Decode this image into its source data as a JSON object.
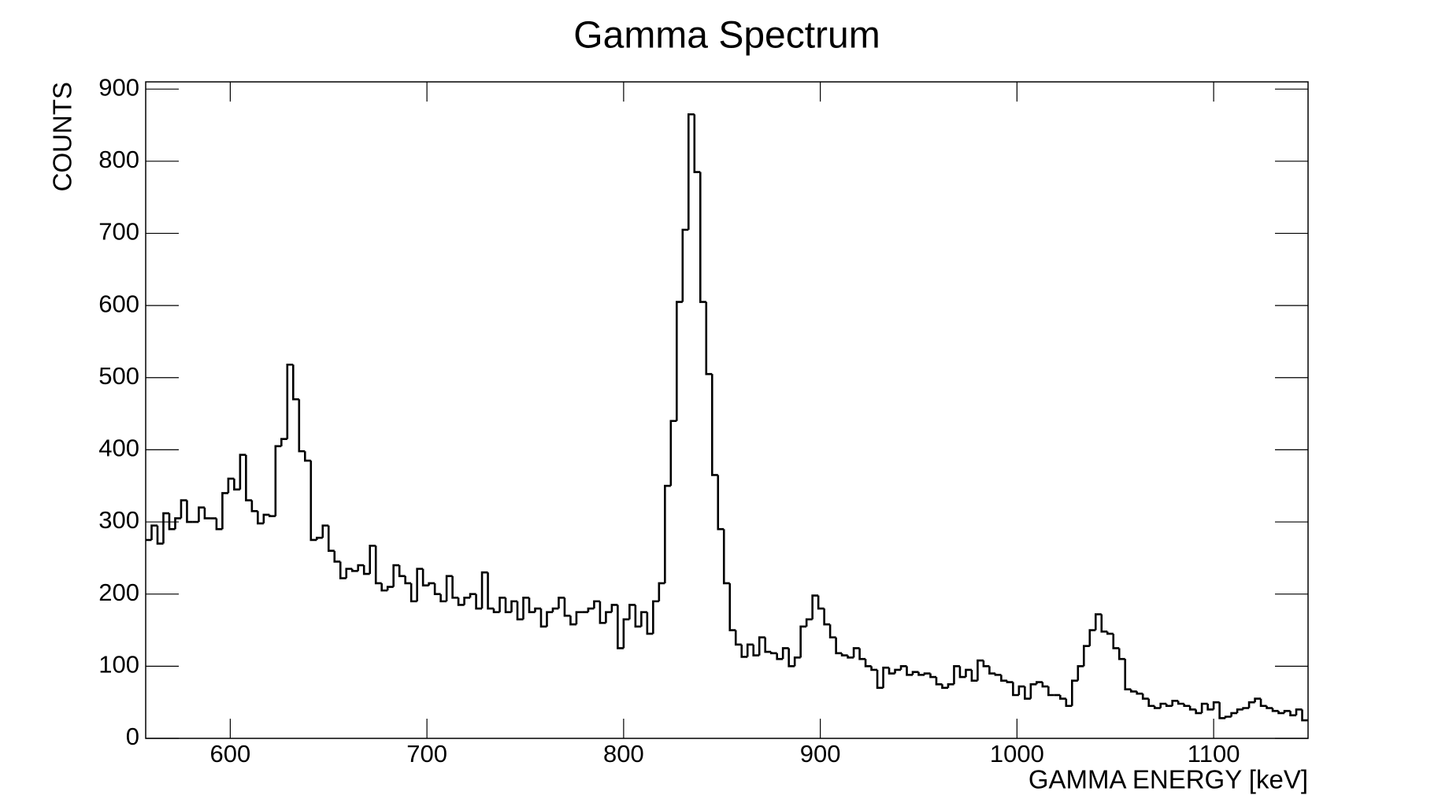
{
  "chart_data": {
    "type": "histogram",
    "title": "Gamma Spectrum",
    "xlabel": "GAMMA ENERGY [keV]",
    "ylabel": "COUNTS",
    "bins": [
      557,
      560,
      563,
      566,
      569,
      572,
      575,
      578,
      581,
      584,
      587,
      590,
      593,
      596,
      599,
      602,
      605,
      608,
      611,
      614,
      617,
      620,
      623,
      626,
      629,
      632,
      635,
      638,
      641,
      644,
      647,
      650,
      653,
      656,
      659,
      662,
      665,
      668,
      671,
      674,
      677,
      680,
      683,
      686,
      689,
      692,
      695,
      698,
      701,
      704,
      707,
      710,
      713,
      716,
      719,
      722,
      725,
      728,
      731,
      734,
      737,
      740,
      743,
      746,
      749,
      752,
      755,
      758,
      761,
      764,
      767,
      770,
      773,
      776,
      779,
      782,
      785,
      788,
      791,
      794,
      797,
      800,
      803,
      806,
      809,
      812,
      815,
      818,
      821,
      824,
      827,
      830,
      833,
      836,
      839,
      842,
      845,
      848,
      851,
      854,
      857,
      860,
      863,
      866,
      869,
      872,
      875,
      878,
      881,
      884,
      887,
      890,
      893,
      896,
      899,
      902,
      905,
      908,
      911,
      914,
      917,
      920,
      923,
      926,
      929,
      932,
      935,
      938,
      941,
      944,
      947,
      950,
      953,
      956,
      959,
      962,
      965,
      968,
      971,
      974,
      977,
      980,
      983,
      986,
      989,
      992,
      995,
      998,
      1001,
      1004,
      1007,
      1010,
      1013,
      1016,
      1019,
      1022,
      1025,
      1028,
      1031,
      1034,
      1037,
      1040,
      1043,
      1046,
      1049,
      1052,
      1055,
      1058,
      1061,
      1064,
      1067,
      1070,
      1073,
      1076,
      1079,
      1082,
      1085,
      1088,
      1091,
      1094,
      1097,
      1100,
      1103,
      1106,
      1109,
      1112,
      1115,
      1118,
      1121,
      1124,
      1127,
      1130,
      1133,
      1136,
      1139,
      1142,
      1145,
      1148
    ],
    "counts": [
      275,
      295,
      270,
      312,
      290,
      305,
      330,
      300,
      300,
      320,
      305,
      305,
      290,
      340,
      360,
      345,
      393,
      330,
      315,
      298,
      310,
      308,
      405,
      415,
      518,
      470,
      398,
      385,
      275,
      278,
      295,
      260,
      245,
      222,
      235,
      232,
      240,
      228,
      267,
      215,
      205,
      210,
      240,
      225,
      215,
      190,
      235,
      212,
      215,
      200,
      190,
      225,
      195,
      185,
      195,
      200,
      180,
      230,
      180,
      175,
      195,
      175,
      190,
      165,
      195,
      175,
      180,
      155,
      175,
      180,
      195,
      170,
      158,
      175,
      175,
      180,
      190,
      160,
      175,
      185,
      125,
      165,
      185,
      155,
      175,
      145,
      190,
      215,
      350,
      440,
      605,
      705,
      865,
      785,
      605,
      505,
      365,
      290,
      215,
      150,
      130,
      113,
      130,
      115,
      140,
      120,
      118,
      110,
      125,
      100,
      112,
      155,
      165,
      198,
      180,
      158,
      140,
      118,
      115,
      112,
      125,
      110,
      100,
      95,
      70,
      98,
      90,
      95,
      100,
      88,
      92,
      88,
      90,
      85,
      75,
      70,
      75,
      100,
      85,
      95,
      80,
      108,
      100,
      90,
      88,
      80,
      78,
      60,
      72,
      55,
      75,
      78,
      72,
      60,
      60,
      55,
      45,
      80,
      100,
      128,
      150,
      172,
      148,
      145,
      125,
      110,
      68,
      65,
      62,
      55,
      45,
      42,
      48,
      45,
      52,
      48,
      45,
      40,
      35,
      48,
      40,
      50,
      28,
      30,
      35,
      40,
      42,
      50,
      55,
      45,
      42,
      38,
      35,
      38,
      32,
      40,
      25
    ],
    "color": "#000000",
    "xlim": [
      557,
      1148
    ],
    "ylim": [
      0,
      910
    ],
    "xticks": [
      600,
      700,
      800,
      900,
      1000,
      1100
    ],
    "yticks": [
      0,
      100,
      200,
      300,
      400,
      500,
      600,
      700,
      800,
      900
    ]
  }
}
